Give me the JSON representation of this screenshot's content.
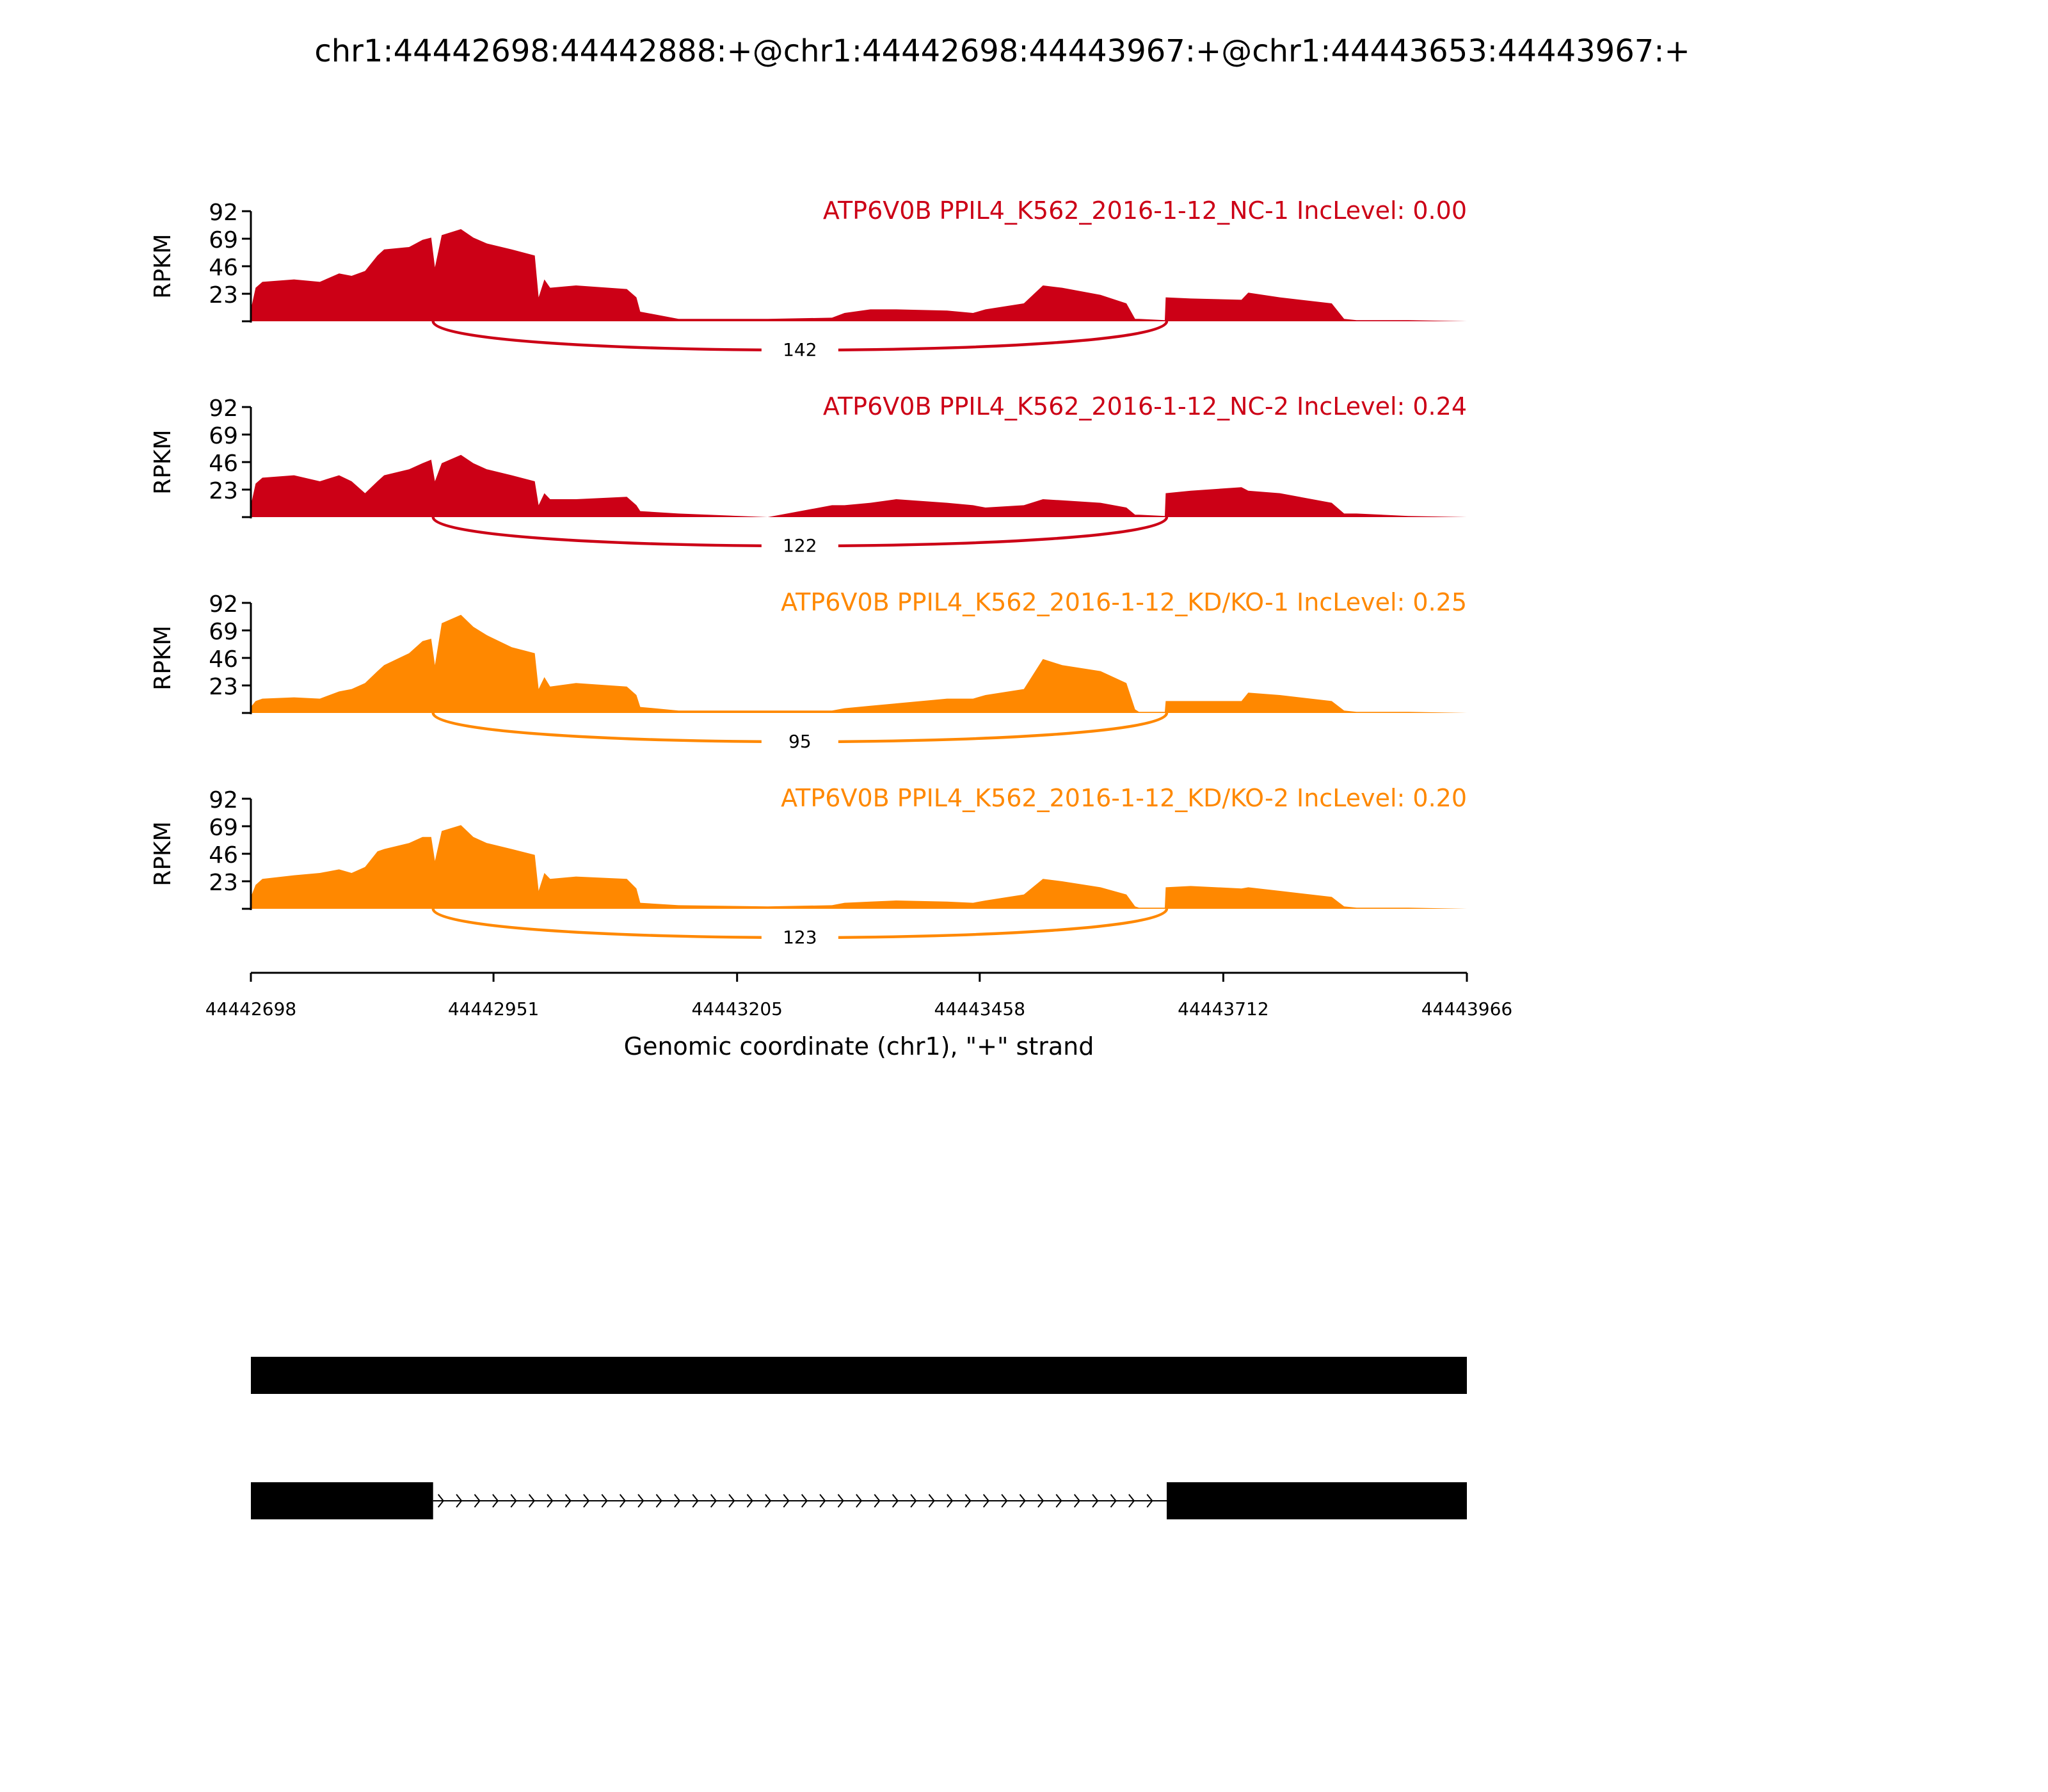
{
  "chart_data": {
    "type": "area",
    "title": "chr1:44442698:44442888:+@chr1:44442698:44443967:+@chr1:44443653:44443967:+",
    "xlabel": "Genomic coordinate (chr1), \"+\" strand",
    "ylabel": "RPKM",
    "xlim": [
      44442698,
      44443966
    ],
    "ylim": [
      0,
      92
    ],
    "yticks": [
      "23",
      "46",
      "69",
      "92"
    ],
    "xticks": [
      "44442698",
      "44442951",
      "44443205",
      "44443458",
      "44443712",
      "44443966"
    ],
    "x": [
      44442698,
      44442703,
      44442710,
      44442743,
      44442770,
      44442790,
      44442803,
      44442817,
      44442830,
      44442837,
      44442863,
      44442877,
      44442886,
      44442890,
      44442897,
      44442917,
      44442930,
      44442944,
      44442970,
      44442994,
      44442998,
      44443004,
      44443010,
      44443037,
      44443090,
      44443100,
      44443104,
      44443144,
      44443237,
      44443304,
      44443317,
      44443344,
      44443371,
      44443424,
      44443451,
      44443464,
      44443504,
      44443524,
      44443544,
      44443584,
      44443611,
      44443620,
      44443624,
      44443651,
      44443652,
      44443678,
      44443731,
      44443738,
      44443771,
      44443825,
      44443838,
      44443851,
      44443905,
      44443966
    ],
    "junction": {
      "start": 44442888,
      "end": 44443653
    },
    "series": [
      {
        "name": "ATP6V0B PPIL4_K562_2016-1-12_NC-1 IncLevel: 0.00",
        "color": "#cc0016",
        "junction_count": "142",
        "values": [
          10,
          28,
          33,
          35,
          33,
          40,
          38,
          42,
          55,
          60,
          62,
          68,
          70,
          45,
          72,
          77,
          70,
          65,
          60,
          55,
          20,
          35,
          28,
          30,
          27,
          20,
          8,
          2,
          2,
          3,
          7,
          10,
          10,
          9,
          7,
          10,
          15,
          30,
          28,
          22,
          15,
          2,
          2,
          1,
          20,
          19,
          18,
          24,
          20,
          15,
          2,
          1,
          1,
          0
        ]
      },
      {
        "name": "ATP6V0B PPIL4_K562_2016-1-12_NC-2 IncLevel: 0.24",
        "color": "#cc0016",
        "junction_count": "122",
        "values": [
          10,
          28,
          33,
          35,
          30,
          35,
          30,
          20,
          30,
          35,
          40,
          45,
          48,
          30,
          45,
          52,
          45,
          40,
          35,
          30,
          10,
          20,
          15,
          15,
          17,
          10,
          5,
          3,
          0,
          10,
          10,
          12,
          15,
          12,
          10,
          8,
          10,
          15,
          14,
          12,
          8,
          2,
          2,
          1,
          20,
          22,
          25,
          22,
          20,
          12,
          3,
          3,
          1,
          0
        ]
      },
      {
        "name": "ATP6V0B PPIL4_K562_2016-1-12_KD/KO-1 IncLevel: 0.25",
        "color": "#ff8800",
        "junction_count": "95",
        "values": [
          5,
          10,
          12,
          13,
          12,
          18,
          20,
          25,
          35,
          40,
          50,
          60,
          62,
          40,
          75,
          82,
          72,
          65,
          55,
          50,
          20,
          30,
          22,
          25,
          22,
          15,
          5,
          2,
          2,
          2,
          4,
          6,
          8,
          12,
          12,
          15,
          20,
          45,
          40,
          35,
          25,
          3,
          1,
          1,
          10,
          10,
          10,
          17,
          15,
          10,
          2,
          1,
          1,
          0
        ]
      },
      {
        "name": "ATP6V0B PPIL4_K562_2016-1-12_KD/KO-2 IncLevel: 0.20",
        "color": "#ff8800",
        "junction_count": "123",
        "values": [
          10,
          20,
          25,
          28,
          30,
          33,
          30,
          35,
          48,
          50,
          55,
          60,
          60,
          40,
          65,
          70,
          60,
          55,
          50,
          45,
          15,
          30,
          25,
          27,
          25,
          17,
          5,
          3,
          2,
          3,
          5,
          6,
          7,
          6,
          5,
          7,
          12,
          25,
          23,
          18,
          12,
          2,
          1,
          1,
          18,
          19,
          17,
          18,
          15,
          10,
          2,
          1,
          1,
          0
        ]
      }
    ],
    "gene_models": [
      {
        "exons": [
          [
            44442698,
            44443966
          ]
        ]
      },
      {
        "exons": [
          [
            44442698,
            44442888
          ],
          [
            44443653,
            44443966
          ]
        ]
      }
    ]
  }
}
